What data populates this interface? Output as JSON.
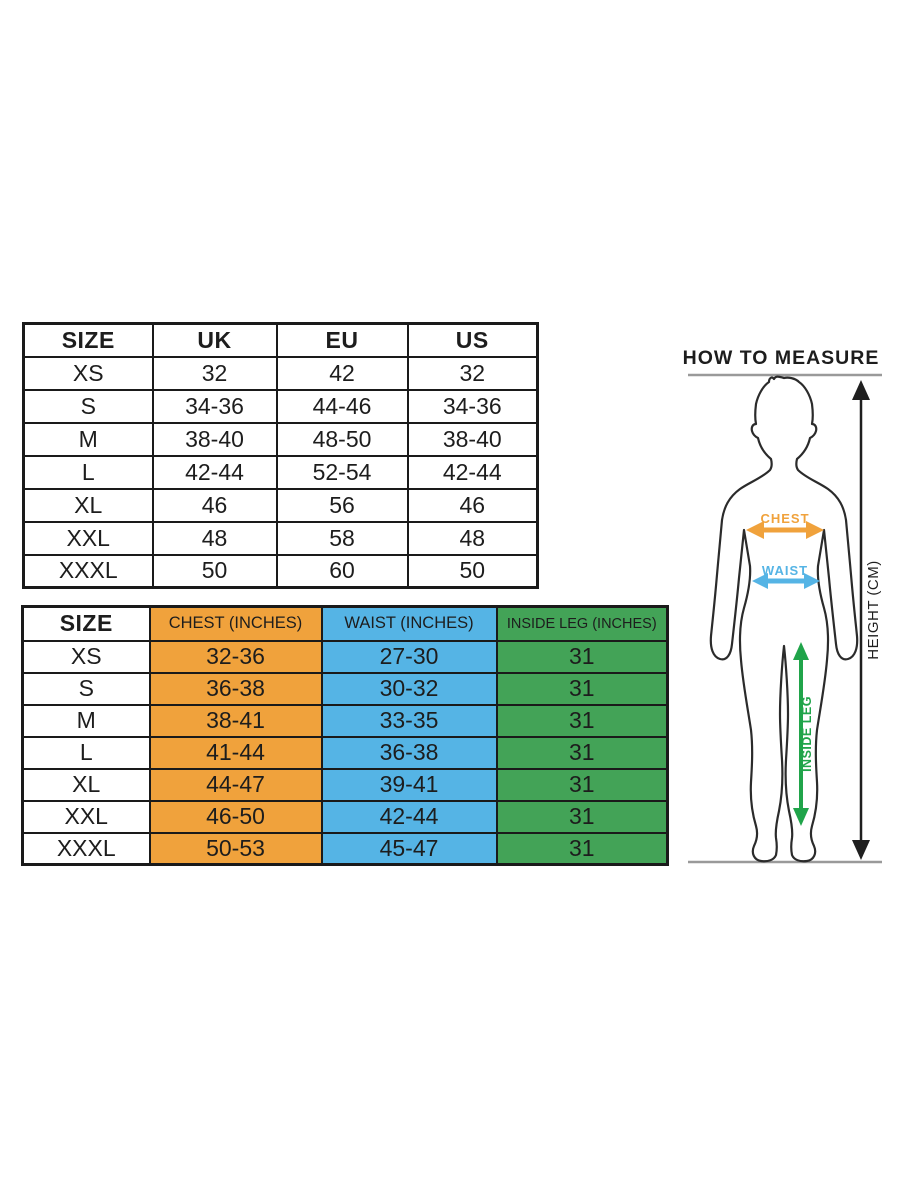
{
  "size_conversion_table": {
    "columns": [
      "SIZE",
      "UK",
      "EU",
      "US"
    ],
    "rows": [
      [
        "XS",
        "32",
        "42",
        "32"
      ],
      [
        "S",
        "34-36",
        "44-46",
        "34-36"
      ],
      [
        "M",
        "38-40",
        "48-50",
        "38-40"
      ],
      [
        "L",
        "42-44",
        "52-54",
        "42-44"
      ],
      [
        "XL",
        "46",
        "56",
        "46"
      ],
      [
        "XXL",
        "48",
        "58",
        "48"
      ],
      [
        "XXXL",
        "50",
        "60",
        "50"
      ]
    ]
  },
  "measurements_table": {
    "columns": [
      "SIZE",
      "CHEST (INCHES)",
      "WAIST (INCHES)",
      "INSIDE LEG (INCHES)"
    ],
    "column_colors": [
      "#FFFFFF",
      "#F0A23C",
      "#55B4E5",
      "#43A357"
    ],
    "rows": [
      [
        "XS",
        "32-36",
        "27-30",
        "31"
      ],
      [
        "S",
        "36-38",
        "30-32",
        "31"
      ],
      [
        "M",
        "38-41",
        "33-35",
        "31"
      ],
      [
        "L",
        "41-44",
        "36-38",
        "31"
      ],
      [
        "XL",
        "44-47",
        "39-41",
        "31"
      ],
      [
        "XXL",
        "46-50",
        "42-44",
        "31"
      ],
      [
        "XXXL",
        "50-53",
        "45-47",
        "31"
      ]
    ]
  },
  "how_to_measure": {
    "title": "HOW TO MEASURE",
    "labels": {
      "chest": "CHEST",
      "waist": "WAIST",
      "inside_leg": "INSIDE LEG",
      "height": "HEIGHT (CM)"
    },
    "colors": {
      "chest": "#F0A23C",
      "waist": "#55B4E5",
      "inside_leg": "#20A44A",
      "height": "#1f1f1f"
    }
  }
}
